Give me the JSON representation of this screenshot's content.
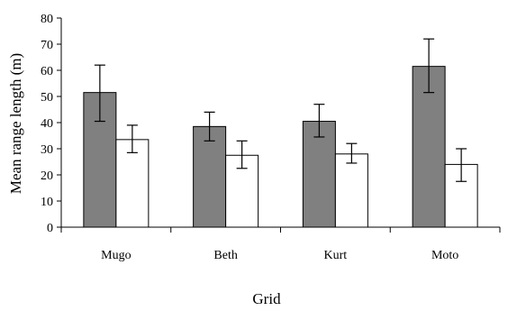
{
  "chart_data": {
    "type": "bar",
    "xlabel": "Grid",
    "ylabel": "Mean range length (m)",
    "categories": [
      "Mugo",
      "Beth",
      "Kurt",
      "Moto"
    ],
    "ylim": [
      0,
      80
    ],
    "yticks": [
      0,
      10,
      20,
      30,
      40,
      50,
      60,
      70,
      80
    ],
    "grid": false,
    "legend": "none",
    "colors": [
      "#808080",
      "#ffffff"
    ],
    "series": [
      {
        "values": [
          51.5,
          38.5,
          40.5,
          61.5
        ],
        "err_low": [
          40.5,
          33.0,
          34.5,
          51.5
        ],
        "err_high": [
          62.0,
          44.0,
          47.0,
          72.0
        ]
      },
      {
        "values": [
          33.5,
          27.5,
          28.0,
          24.0
        ],
        "err_low": [
          28.5,
          22.5,
          24.5,
          17.5
        ],
        "err_high": [
          39.0,
          33.0,
          32.0,
          30.0
        ]
      }
    ]
  }
}
